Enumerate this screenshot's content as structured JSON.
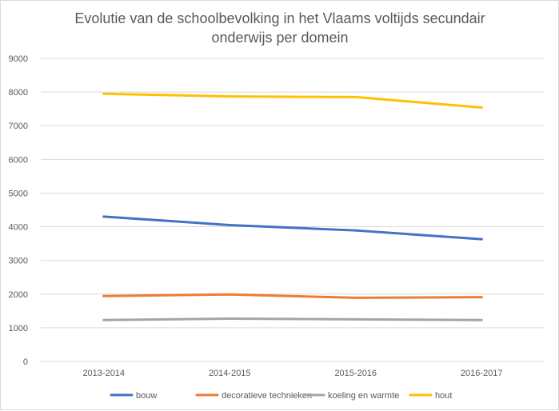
{
  "chart_data": {
    "type": "line",
    "title_lines": [
      "Evolutie van de schoolbevolking in het Vlaams voltijds secundair",
      "onderwijs per domein"
    ],
    "categories": [
      "2013-2014",
      "2014-2015",
      "2015-2016",
      "2016-2017"
    ],
    "ylim": [
      0,
      9000
    ],
    "yticks": [
      0,
      1000,
      2000,
      3000,
      4000,
      5000,
      6000,
      7000,
      8000,
      9000
    ],
    "grid": true,
    "legend_position": "bottom",
    "series": [
      {
        "name": "bouw",
        "color": "#4472c4",
        "values": [
          4300,
          4050,
          3890,
          3630
        ]
      },
      {
        "name": "decoratieve technieken",
        "color": "#ed7d31",
        "values": [
          1940,
          1990,
          1890,
          1910
        ]
      },
      {
        "name": "koeling en warmte",
        "color": "#a5a5a5",
        "values": [
          1230,
          1270,
          1250,
          1230
        ]
      },
      {
        "name": "hout",
        "color": "#ffc000",
        "values": [
          7950,
          7870,
          7850,
          7540
        ]
      }
    ]
  }
}
